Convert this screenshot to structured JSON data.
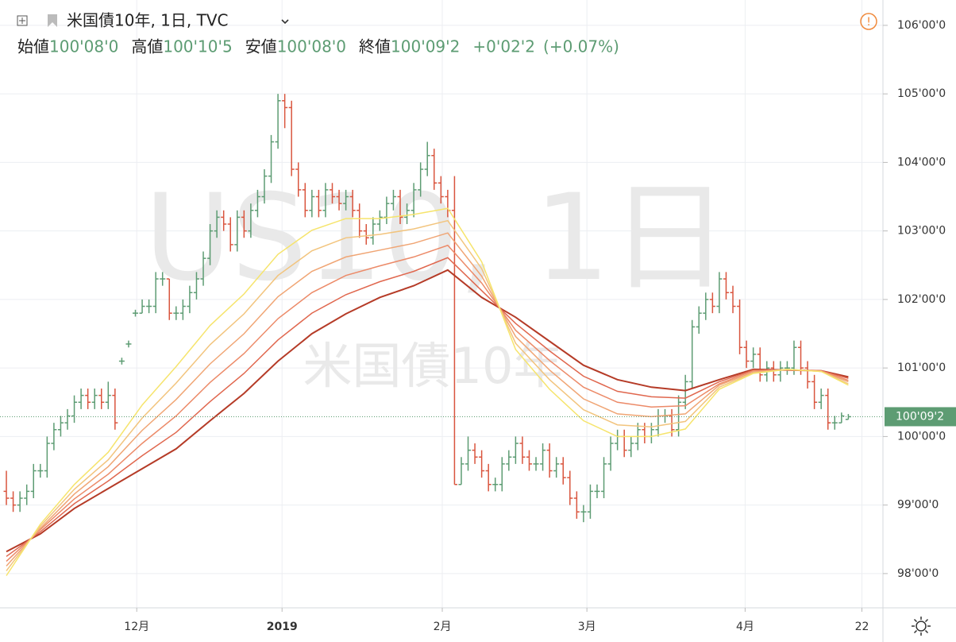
{
  "header": {
    "symbol": "米国債10年, 1日, TVC",
    "ohlc_names": [
      "始値",
      "高値",
      "安値",
      "終値"
    ],
    "ohlc_values": [
      "100'08'0",
      "100'10'5",
      "100'08'0",
      "100'09'2"
    ],
    "change": "+0'02'2",
    "change_pct": "(+0.07%)"
  },
  "chart_data": {
    "type": "ohlc",
    "watermark": [
      "US10, 1日",
      "米国債10年"
    ],
    "xlim": [
      -0.94,
      129.1
    ],
    "xticks": [
      {
        "value": 19.2,
        "label": "12月"
      },
      {
        "value": 40.6,
        "label": "2019"
      },
      {
        "value": 64.2,
        "label": "2月"
      },
      {
        "value": 85.5,
        "label": "3月"
      },
      {
        "value": 108.8,
        "label": "4月"
      },
      {
        "value": 126,
        "label": "22"
      }
    ],
    "ylim": [
      97.5,
      106.37
    ],
    "yticks": [
      {
        "value": 98,
        "label": "98'00'0"
      },
      {
        "value": 99,
        "label": "99'00'0"
      },
      {
        "value": 100,
        "label": "100'00'0"
      },
      {
        "value": 101,
        "label": "101'00'0"
      },
      {
        "value": 102,
        "label": "102'00'0"
      },
      {
        "value": 103,
        "label": "103'00'0"
      },
      {
        "value": 104,
        "label": "104'00'0"
      },
      {
        "value": 105,
        "label": "105'00'0"
      },
      {
        "value": 106,
        "label": "106'00'0"
      }
    ],
    "grid": true,
    "last_price": {
      "value": 100.2890625,
      "label": "100'09'2"
    },
    "up_color": "#5d9c73",
    "down_color": "#d9553e",
    "open": [
      99.2,
      99.1,
      99.0,
      99.1,
      99.2,
      99.5,
      99.5,
      99.9,
      100.1,
      100.2,
      100.3,
      100.5,
      100.6,
      100.5,
      100.6,
      100.5,
      100.6,
      101.1,
      101.35,
      101.8,
      101.8,
      101.9,
      101.9,
      102.3,
      102.3,
      101.8,
      101.8,
      101.9,
      102.1,
      102.3,
      102.6,
      103.0,
      103.2,
      103.1,
      102.8,
      103.2,
      103.0,
      103.3,
      103.5,
      103.8,
      104.3,
      104.9,
      104.8,
      103.9,
      103.6,
      103.3,
      103.5,
      103.3,
      103.6,
      103.5,
      103.4,
      103.5,
      103.3,
      103.0,
      102.9,
      103.1,
      103.2,
      103.4,
      103.5,
      103.2,
      103.3,
      103.6,
      103.9,
      104.1,
      103.7,
      103.5,
      103.3,
      99.3,
      99.6,
      99.8,
      99.7,
      99.5,
      99.3,
      99.3,
      99.6,
      99.7,
      99.9,
      99.7,
      99.6,
      99.6,
      99.8,
      99.5,
      99.6,
      99.4,
      99.1,
      98.9,
      98.9,
      99.2,
      99.2,
      99.6,
      99.9,
      100.0,
      99.8,
      99.9,
      100.1,
      100.0,
      100.1,
      100.3,
      100.3,
      100.1,
      100.5,
      100.8,
      101.6,
      101.8,
      102.0,
      101.9,
      102.3,
      102.1,
      101.9,
      101.3,
      101.1,
      101.2,
      100.9,
      101.0,
      100.9,
      101.0,
      101.0,
      101.3,
      101.0,
      100.8,
      100.5,
      100.6,
      100.2,
      100.2,
      100.25
    ],
    "high": [
      99.5,
      99.2,
      99.2,
      99.3,
      99.6,
      99.6,
      100.0,
      100.2,
      100.3,
      100.4,
      100.6,
      100.7,
      100.7,
      100.7,
      100.7,
      100.8,
      100.7,
      101.15,
      101.4,
      101.85,
      102.0,
      102.0,
      102.4,
      102.4,
      102.3,
      101.9,
      102.0,
      102.2,
      102.4,
      102.7,
      103.1,
      103.3,
      103.3,
      103.2,
      103.3,
      103.3,
      103.4,
      103.6,
      103.9,
      104.4,
      105.0,
      105.0,
      104.9,
      104.0,
      103.7,
      103.6,
      103.6,
      103.7,
      103.7,
      103.6,
      103.6,
      103.6,
      103.4,
      103.1,
      103.2,
      103.3,
      103.5,
      103.6,
      103.6,
      103.4,
      103.7,
      104.0,
      104.3,
      104.2,
      103.8,
      103.6,
      103.8,
      99.7,
      100.0,
      99.9,
      99.8,
      99.6,
      99.4,
      99.7,
      99.8,
      100.0,
      100.0,
      99.8,
      99.7,
      99.9,
      99.9,
      99.7,
      99.7,
      99.5,
      99.2,
      99.0,
      99.3,
      99.3,
      99.7,
      100.0,
      100.1,
      100.1,
      100.0,
      100.2,
      100.2,
      100.2,
      100.4,
      100.4,
      100.4,
      100.6,
      100.9,
      101.7,
      101.9,
      102.1,
      102.1,
      102.4,
      102.4,
      102.2,
      102.0,
      101.4,
      101.3,
      101.3,
      101.1,
      101.1,
      101.1,
      101.1,
      101.4,
      101.4,
      101.1,
      100.9,
      100.7,
      100.7,
      100.3,
      100.35,
      100.328125
    ],
    "low": [
      99.0,
      98.9,
      98.9,
      99.0,
      99.1,
      99.4,
      99.4,
      99.8,
      100.0,
      100.1,
      100.2,
      100.4,
      100.4,
      100.4,
      100.4,
      100.4,
      100.1,
      101.05,
      101.3,
      101.75,
      101.8,
      101.8,
      101.8,
      102.2,
      101.7,
      101.7,
      101.7,
      101.8,
      102.0,
      102.2,
      102.5,
      102.9,
      103.0,
      102.7,
      102.7,
      102.9,
      102.9,
      103.2,
      103.4,
      103.7,
      104.2,
      104.5,
      103.8,
      103.5,
      103.2,
      103.2,
      103.2,
      103.2,
      103.4,
      103.3,
      103.3,
      103.2,
      102.9,
      102.8,
      102.8,
      103.0,
      103.1,
      103.3,
      103.1,
      103.1,
      103.2,
      103.5,
      103.8,
      103.6,
      103.4,
      103.2,
      99.3,
      99.3,
      99.5,
      99.6,
      99.4,
      99.2,
      99.2,
      99.2,
      99.5,
      99.6,
      99.6,
      99.5,
      99.5,
      99.5,
      99.4,
      99.4,
      99.3,
      99.0,
      98.8,
      98.75,
      98.8,
      99.1,
      99.1,
      99.5,
      99.8,
      99.7,
      99.7,
      99.8,
      99.9,
      99.9,
      100.0,
      100.2,
      100.0,
      100.0,
      100.4,
      100.7,
      101.5,
      101.7,
      101.8,
      101.8,
      102.0,
      101.8,
      101.2,
      101.0,
      101.0,
      100.8,
      100.8,
      100.8,
      100.8,
      100.9,
      100.9,
      100.9,
      100.7,
      100.4,
      100.4,
      100.1,
      100.1,
      100.2,
      100.25
    ],
    "close": [
      99.1,
      99.0,
      99.1,
      99.2,
      99.5,
      99.5,
      99.9,
      100.1,
      100.2,
      100.3,
      100.5,
      100.6,
      100.5,
      100.6,
      100.5,
      100.6,
      100.2,
      101.1,
      101.35,
      101.8,
      101.9,
      101.9,
      102.3,
      102.3,
      101.8,
      101.8,
      101.9,
      102.1,
      102.3,
      102.6,
      103.0,
      103.2,
      103.1,
      102.8,
      103.2,
      103.0,
      103.3,
      103.5,
      103.8,
      104.3,
      104.9,
      104.8,
      103.9,
      103.6,
      103.3,
      103.5,
      103.3,
      103.6,
      103.5,
      103.4,
      103.5,
      103.3,
      103.0,
      102.9,
      103.1,
      103.2,
      103.4,
      103.5,
      103.2,
      103.3,
      103.6,
      103.9,
      104.1,
      103.7,
      103.5,
      103.3,
      99.3,
      99.6,
      99.8,
      99.7,
      99.5,
      99.3,
      99.3,
      99.6,
      99.7,
      99.9,
      99.7,
      99.6,
      99.6,
      99.8,
      99.5,
      99.6,
      99.4,
      99.1,
      98.9,
      98.9,
      99.2,
      99.2,
      99.6,
      99.9,
      100.0,
      99.8,
      99.9,
      100.1,
      100.0,
      100.1,
      100.3,
      100.3,
      100.1,
      100.5,
      100.8,
      101.6,
      101.8,
      102.0,
      101.9,
      102.3,
      102.1,
      101.9,
      101.3,
      101.1,
      101.2,
      100.9,
      101.0,
      100.9,
      101.0,
      101.0,
      101.3,
      101.0,
      100.8,
      100.5,
      100.6,
      100.2,
      100.2,
      100.3,
      100.2890625
    ],
    "ma_x": [
      0,
      5,
      10,
      15,
      20,
      25,
      30,
      35,
      40,
      45,
      50,
      55,
      60,
      65,
      70,
      75,
      80,
      85,
      90,
      95,
      100,
      105,
      110,
      115,
      120,
      124
    ],
    "series": [
      {
        "color": "#f6e46c",
        "values": [
          97.97,
          98.72,
          99.3,
          99.77,
          100.46,
          101.02,
          101.62,
          102.08,
          102.66,
          103.01,
          103.18,
          103.18,
          103.24,
          103.33,
          102.55,
          101.27,
          100.69,
          100.23,
          100.0,
          100.0,
          100.11,
          100.69,
          100.92,
          100.98,
          100.95,
          100.75
        ]
      },
      {
        "color": "#f2c47d",
        "values": [
          98.04,
          98.69,
          99.23,
          99.66,
          100.27,
          100.78,
          101.34,
          101.79,
          102.35,
          102.71,
          102.9,
          102.95,
          103.03,
          103.15,
          102.45,
          101.36,
          100.83,
          100.39,
          100.17,
          100.14,
          100.22,
          100.72,
          100.93,
          100.98,
          100.95,
          100.77
        ]
      },
      {
        "color": "#f0a574",
        "values": [
          98.11,
          98.66,
          99.16,
          99.56,
          100.09,
          100.54,
          101.06,
          101.5,
          102.04,
          102.41,
          102.62,
          102.72,
          102.82,
          102.97,
          102.34,
          101.46,
          100.97,
          100.55,
          100.33,
          100.29,
          100.33,
          100.75,
          100.94,
          100.98,
          100.95,
          100.8
        ]
      },
      {
        "color": "#ec8a68",
        "values": [
          98.18,
          98.64,
          99.09,
          99.45,
          99.9,
          100.3,
          100.79,
          101.21,
          101.72,
          102.1,
          102.35,
          102.49,
          102.62,
          102.79,
          102.24,
          101.55,
          101.11,
          100.72,
          100.5,
          100.43,
          100.45,
          100.77,
          100.96,
          100.97,
          100.96,
          100.82
        ]
      },
      {
        "color": "#e0674e",
        "values": [
          98.25,
          98.61,
          99.02,
          99.35,
          99.72,
          100.06,
          100.51,
          100.92,
          101.41,
          101.8,
          102.07,
          102.26,
          102.41,
          102.61,
          102.13,
          101.65,
          101.25,
          100.88,
          100.66,
          100.58,
          100.56,
          100.8,
          100.97,
          100.97,
          100.96,
          100.85
        ]
      },
      {
        "color": "#b53b27",
        "values": [
          98.32,
          98.58,
          98.95,
          99.24,
          99.53,
          99.82,
          100.23,
          100.63,
          101.1,
          101.5,
          101.79,
          102.03,
          102.2,
          102.43,
          102.03,
          101.74,
          101.39,
          101.04,
          100.83,
          100.72,
          100.67,
          100.83,
          100.98,
          100.97,
          100.96,
          100.87
        ]
      }
    ]
  }
}
